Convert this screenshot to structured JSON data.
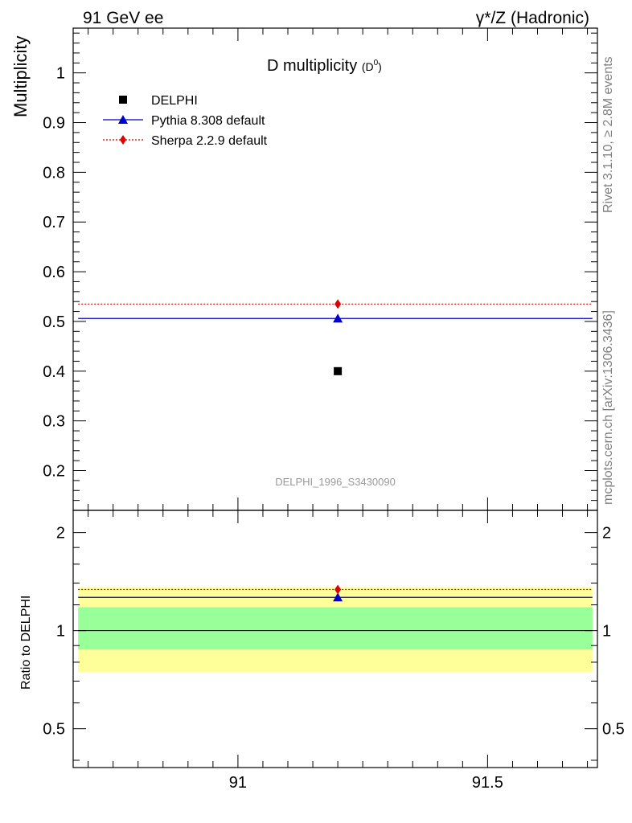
{
  "header": {
    "left": "91 GeV ee",
    "right_prefix": "γ*/Z",
    "right_suffix": "(Hadronic)"
  },
  "side_text": {
    "rivet": "Rivet 3.1.10, ≥ 2.8M events",
    "mcplots": "mcplots.cern.ch [arXiv:1306.3436]"
  },
  "chart_data": [
    {
      "type": "scatter",
      "title_main": "D multiplicity",
      "title_sub": "(D",
      "title_sup": "0",
      "title_close": ")",
      "ylabel": "Multiplicity",
      "watermark": "DELPHI_1996_S3430090",
      "xlim": [
        90.67,
        91.72
      ],
      "ylim": [
        0.12,
        1.09
      ],
      "yticks": [
        0.2,
        0.3,
        0.4,
        0.5,
        0.6,
        0.7,
        0.8,
        0.9,
        1
      ],
      "ytick_labels": [
        "0.2",
        "0.3",
        "0.4",
        "0.5",
        "0.6",
        "0.7",
        "0.8",
        "0.9",
        "1"
      ],
      "legend_position": "top-left",
      "series": [
        {
          "name": "DELPHI",
          "x": [
            91.2
          ],
          "y": [
            0.4
          ],
          "marker": "square",
          "color": "#000000"
        },
        {
          "name": "Pythia 8.308 default",
          "x": [
            91.2
          ],
          "y": [
            0.506
          ],
          "x_range": [
            90.68,
            91.71
          ],
          "marker": "triangle",
          "line": "solid",
          "color": "#0000cc"
        },
        {
          "name": "Sherpa 2.2.9 default",
          "x": [
            91.2
          ],
          "y": [
            0.535
          ],
          "x_range": [
            90.68,
            91.71
          ],
          "marker": "diamond",
          "line": "dotted",
          "color": "#e00000"
        }
      ]
    },
    {
      "type": "scatter",
      "ylabel": "Ratio to DELPHI",
      "xlim": [
        90.67,
        91.72
      ],
      "ylim": [
        0.38,
        2.34
      ],
      "log_y": true,
      "xticks": [
        91,
        91.5
      ],
      "xtick_labels": [
        "91",
        "91.5"
      ],
      "yticks": [
        0.5,
        1,
        2
      ],
      "ytick_labels": [
        "0.5",
        "1",
        "2"
      ],
      "bands": [
        {
          "name": "outer",
          "y_range": [
            0.745,
            1.36
          ],
          "color": "#ffff99"
        },
        {
          "name": "inner",
          "y_range": [
            0.875,
            1.18
          ],
          "color": "#99ff99"
        }
      ],
      "reference_y": 1,
      "series": [
        {
          "name": "Pythia 8.308 default",
          "x": [
            91.2
          ],
          "y": [
            1.265
          ],
          "x_range": [
            90.68,
            91.71
          ],
          "marker": "triangle",
          "line": "solid",
          "color": "#0000cc"
        },
        {
          "name": "Sherpa 2.2.9 default",
          "x": [
            91.2
          ],
          "y": [
            1.3375
          ],
          "x_range": [
            90.68,
            91.71
          ],
          "marker": "diamond",
          "line": "dotted",
          "color": "#e00000"
        }
      ]
    }
  ]
}
